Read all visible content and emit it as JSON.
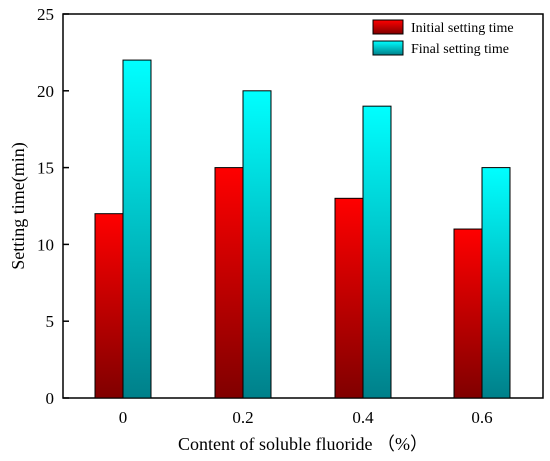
{
  "chart_data": {
    "type": "bar",
    "xlabel": "Content of soluble fluoride （%）",
    "ylabel": "Setting time(min)",
    "categories": [
      "0",
      "0.2",
      "0.4",
      "0.6"
    ],
    "ylim": [
      0,
      25
    ],
    "yticks": [
      "0",
      "5",
      "10",
      "15",
      "20",
      "25"
    ],
    "grid": false,
    "legend_position": "top-right",
    "series": [
      {
        "name": "Initial setting time",
        "values": [
          12,
          15,
          13,
          11
        ],
        "color_top": "#ff0000",
        "color_bottom": "#800000"
      },
      {
        "name": "Final setting time",
        "values": [
          22,
          20,
          19,
          15
        ],
        "color_top": "#00ffff",
        "color_bottom": "#00808a"
      }
    ]
  }
}
